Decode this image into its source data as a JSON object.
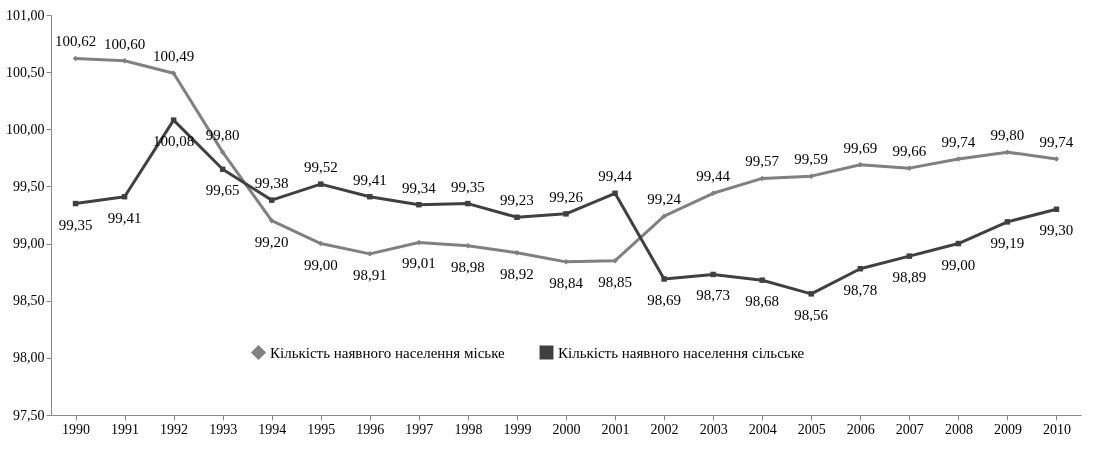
{
  "chart_data": {
    "type": "line",
    "categories": [
      "1990",
      "1991",
      "1992",
      "1993",
      "1994",
      "1995",
      "1996",
      "1997",
      "1998",
      "1999",
      "2000",
      "2001",
      "2002",
      "2003",
      "2004",
      "2005",
      "2006",
      "2007",
      "2008",
      "2009",
      "2010"
    ],
    "series": [
      {
        "name": "Кількість наявного населення міське",
        "color": "#808080",
        "marker": "diamond",
        "values": [
          100.62,
          100.6,
          100.49,
          99.8,
          99.2,
          99.0,
          98.91,
          99.01,
          98.98,
          98.92,
          98.84,
          98.85,
          99.24,
          99.44,
          99.57,
          99.59,
          99.69,
          99.66,
          99.74,
          99.8,
          99.74
        ],
        "value_labels": [
          "100,62",
          "100,60",
          "100,49",
          "99,80",
          "99,20",
          "99,00",
          "98,91",
          "99,01",
          "98,98",
          "98,92",
          "98,84",
          "98,85",
          "99,24",
          "99,44",
          "99,57",
          "99,59",
          "99,69",
          "99,66",
          "99,74",
          "99,80",
          "99,74"
        ]
      },
      {
        "name": "Кількість наявного населення сільське",
        "color": "#404040",
        "marker": "square",
        "values": [
          99.35,
          99.41,
          100.08,
          99.65,
          99.38,
          99.52,
          99.41,
          99.34,
          99.35,
          99.23,
          99.26,
          99.44,
          98.69,
          98.73,
          98.68,
          98.56,
          98.78,
          98.89,
          99.0,
          99.19,
          99.3
        ],
        "value_labels": [
          "99,35",
          "99,41",
          "100,08",
          "99,65",
          "99,38",
          "99,52",
          "99,41",
          "99,34",
          "99,35",
          "99,23",
          "99,26",
          "99,44",
          "98,69",
          "98,73",
          "98,68",
          "98,56",
          "98,78",
          "98,89",
          "99,00",
          "99,19",
          "99,30"
        ]
      }
    ],
    "ylim": [
      97.5,
      101
    ],
    "yticks": [
      {
        "value": 97.5,
        "label": "97,50"
      },
      {
        "value": 98,
        "label": "98,00"
      },
      {
        "value": 98.5,
        "label": "98,50"
      },
      {
        "value": 99,
        "label": "99,00"
      },
      {
        "value": 99.5,
        "label": "99,50"
      },
      {
        "value": 100,
        "label": "100,00"
      },
      {
        "value": 100.5,
        "label": "100,50"
      },
      {
        "value": 101,
        "label": "101,00"
      }
    ],
    "grid": false,
    "legend": "bottom",
    "line_style": "solid"
  }
}
